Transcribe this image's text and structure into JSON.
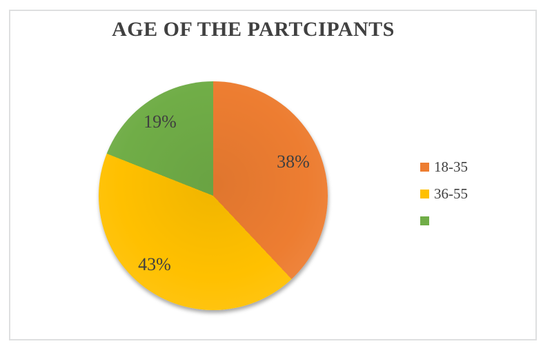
{
  "chart_data": {
    "type": "pie",
    "title": "AGE OF THE PARTCIPANTS",
    "start_angle_deg": 0,
    "direction": "clockwise",
    "legend_position": "right",
    "slices": [
      {
        "legend_label": "18-35",
        "value": 38,
        "data_label": "38%",
        "color": "#ED7D31"
      },
      {
        "legend_label": "36-55",
        "value": 43,
        "data_label": "43%",
        "color": "#FFC000"
      },
      {
        "legend_label": "",
        "value": 19,
        "data_label": "19%",
        "color": "#70AD47"
      }
    ]
  },
  "colors": {
    "title_text": "#404040",
    "label_text": "#404040",
    "frame_border": "#DEDFE0",
    "background": "#FFFFFF"
  }
}
